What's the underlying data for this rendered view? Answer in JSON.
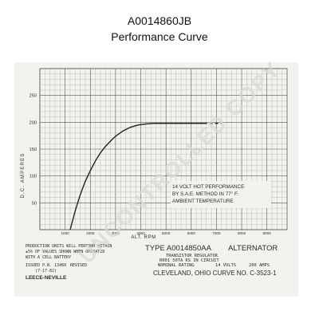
{
  "header": {
    "title": "A0014860JB",
    "subtitle": "Performance Curve"
  },
  "colors": {
    "paper": "#f3f2ee",
    "grid": "#999999",
    "grid_major": "#555555",
    "ink": "#222222",
    "watermark": "#d9d9d9"
  },
  "chart_data": {
    "type": "line",
    "title": "",
    "xlabel": "ALT. RPM",
    "ylabel": "D.C. AMPERES",
    "x_ticks": [
      "1000",
      "2000",
      "3000",
      "4000",
      "5000",
      "6000",
      "7000",
      "8000",
      "9000"
    ],
    "y_ticks": [
      "50",
      "100",
      "150",
      "200",
      "250"
    ],
    "xlim": [
      0,
      9800
    ],
    "ylim": [
      0,
      300
    ],
    "grid": true,
    "legend": "none",
    "series": [
      {
        "x": [
          1200,
          1400,
          1600,
          1800,
          2000,
          2200,
          2400,
          2600,
          2800,
          3000,
          3300,
          3600,
          3900,
          4200,
          4500,
          5000,
          5500,
          6000,
          6500
        ],
        "y": [
          0,
          35,
          65,
          90,
          110,
          128,
          143,
          155,
          165,
          174,
          184,
          191,
          195,
          197,
          198,
          198,
          198,
          198,
          198
        ],
        "style": "solid"
      },
      {
        "x": [
          6500,
          7200
        ],
        "y": [
          198,
          198
        ],
        "style": "dashed"
      }
    ],
    "annotations": [
      "14 VOLT HOT PERFORMANCE",
      "BY S.A.E. METHOD IN 77° F.",
      "AMBIENT TEMPERATURE"
    ]
  },
  "footer": {
    "left_lines": [
      "PRODUCTION UNITS WILL PERFORM WITHIN",
      "±5% OF VALUES SHOWN WHEN OPERATED",
      "WITH A    CELL BATTERY"
    ],
    "issued": "ISSUED P.N. 13460",
    "issued_date": "(7-17-82)",
    "revised": "REVISED",
    "brand": "LEECE-NEVILLE",
    "type_line": "TYPE  A0014850AA",
    "type_word": "ALTERNATOR",
    "regulator_line": "TRANSISTOR REGULATOR",
    "circuit_line": "R001 50TA RS IN CIRCUIT",
    "rating_label": "NOMINAL RATING",
    "rating_volts": "14 VOLTS",
    "rating_amps": "200 AMPS",
    "city_line": "CLEVELAND, OHIO  CURVE NO.  C-3523-1"
  },
  "watermark": {
    "text": "UNCONTROLLED COPY"
  }
}
